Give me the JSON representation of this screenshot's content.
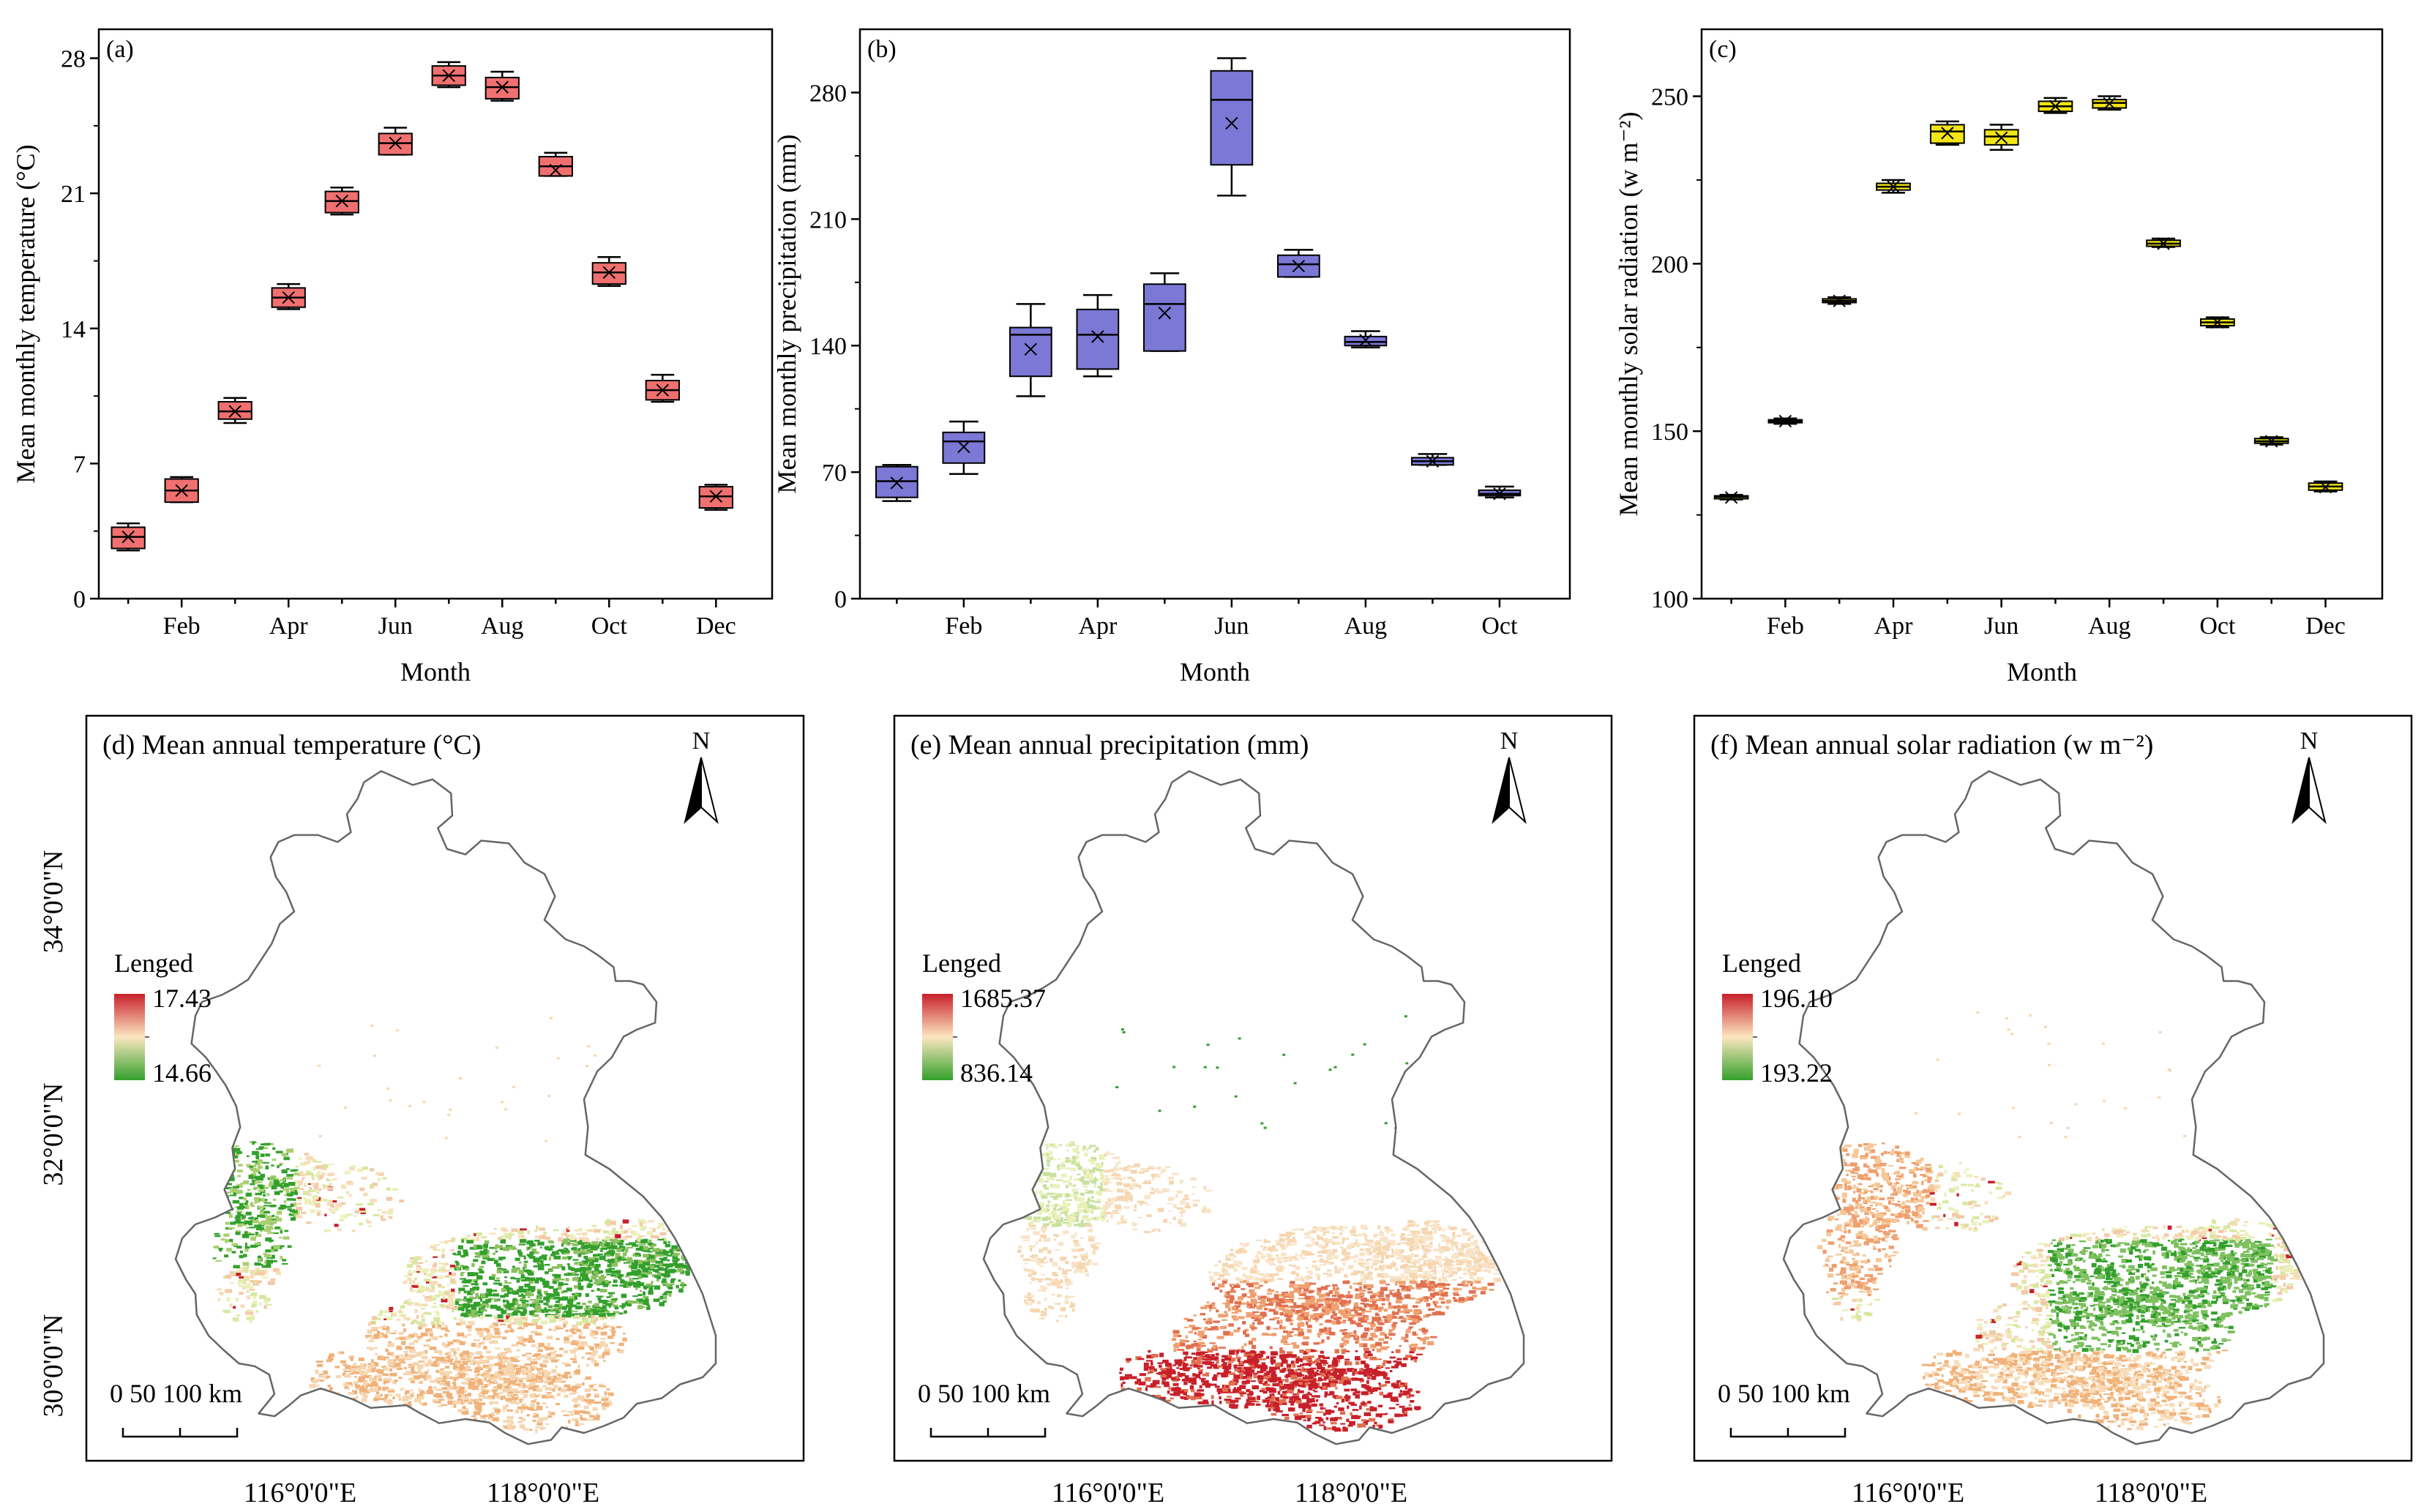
{
  "chart_data": [
    {
      "type": "box",
      "panel_label": "(a)",
      "ylabel": "Mean monthly temperature (°C)",
      "xlabel": "Month",
      "ylim": [
        0,
        29.5
      ],
      "yticks": [
        0,
        7,
        14,
        21,
        28
      ],
      "xtick_labels": {
        "2": "Feb",
        "4": "Apr",
        "6": "Jun",
        "8": "Aug",
        "10": "Oct",
        "12": "Dec"
      },
      "color": "#f07070",
      "months": [
        1,
        2,
        3,
        4,
        5,
        6,
        7,
        8,
        9,
        10,
        11,
        12
      ],
      "boxes": [
        {
          "min": 2.5,
          "q1": 2.6,
          "median": 3.2,
          "q3": 3.7,
          "max": 3.9,
          "mean": 3.2
        },
        {
          "min": 5.0,
          "q1": 5.0,
          "median": 5.6,
          "q3": 6.2,
          "max": 6.3,
          "mean": 5.6
        },
        {
          "min": 9.1,
          "q1": 9.3,
          "median": 9.7,
          "q3": 10.2,
          "max": 10.4,
          "mean": 9.7
        },
        {
          "min": 15.0,
          "q1": 15.1,
          "median": 15.6,
          "q3": 16.1,
          "max": 16.3,
          "mean": 15.6
        },
        {
          "min": 19.9,
          "q1": 20.0,
          "median": 20.6,
          "q3": 21.1,
          "max": 21.3,
          "mean": 20.6
        },
        {
          "min": 23.0,
          "q1": 23.0,
          "median": 23.6,
          "q3": 24.1,
          "max": 24.4,
          "mean": 23.6
        },
        {
          "min": 26.5,
          "q1": 26.6,
          "median": 27.1,
          "q3": 27.6,
          "max": 27.8,
          "mean": 27.1
        },
        {
          "min": 25.8,
          "q1": 25.9,
          "median": 26.5,
          "q3": 27.0,
          "max": 27.3,
          "mean": 26.5
        },
        {
          "min": 21.9,
          "q1": 21.9,
          "median": 22.4,
          "q3": 22.9,
          "max": 23.1,
          "mean": 22.2
        },
        {
          "min": 16.2,
          "q1": 16.3,
          "median": 16.9,
          "q3": 17.4,
          "max": 17.7,
          "mean": 16.9
        },
        {
          "min": 10.2,
          "q1": 10.3,
          "median": 10.8,
          "q3": 11.3,
          "max": 11.6,
          "mean": 10.8
        },
        {
          "min": 4.6,
          "q1": 4.7,
          "median": 5.3,
          "q3": 5.8,
          "max": 5.9,
          "mean": 5.3
        }
      ]
    },
    {
      "type": "box",
      "panel_label": "(b)",
      "ylabel": "Mean monthly precipitation (mm)",
      "xlabel": "Month",
      "ylim": [
        0,
        315
      ],
      "yticks": [
        0,
        70,
        140,
        210,
        280
      ],
      "xtick_labels": {
        "2": "Feb",
        "4": "Apr",
        "6": "Jun",
        "8": "Aug",
        "10": "Oct"
      },
      "color": "#7b78d6",
      "months": [
        1,
        2,
        3,
        4,
        5,
        6,
        7,
        8,
        9,
        10
      ],
      "boxes": [
        {
          "min": 54,
          "q1": 56,
          "median": 65,
          "q3": 73,
          "max": 74,
          "mean": 64
        },
        {
          "min": 69,
          "q1": 75,
          "median": 87,
          "q3": 92,
          "max": 98,
          "mean": 84
        },
        {
          "min": 112,
          "q1": 123,
          "median": 146,
          "q3": 150,
          "max": 163,
          "mean": 138
        },
        {
          "min": 123,
          "q1": 127,
          "median": 146,
          "q3": 160,
          "max": 168,
          "mean": 145
        },
        {
          "min": 137,
          "q1": 137,
          "median": 163,
          "q3": 174,
          "max": 180,
          "mean": 158
        },
        {
          "min": 223,
          "q1": 240,
          "median": 276,
          "q3": 292,
          "max": 299,
          "mean": 263
        },
        {
          "min": 178,
          "q1": 178,
          "median": 185,
          "q3": 190,
          "max": 193,
          "mean": 184
        },
        {
          "min": 139,
          "q1": 140,
          "median": 142,
          "q3": 145,
          "max": 148,
          "mean": 143
        },
        {
          "min": 74,
          "q1": 74,
          "median": 76,
          "q3": 78,
          "max": 80,
          "mean": 76
        },
        {
          "min": 56,
          "q1": 57,
          "median": 58,
          "q3": 60,
          "max": 62,
          "mean": 58
        }
      ]
    },
    {
      "type": "box",
      "panel_label": "(c)",
      "ylabel": "Mean monthly solar radiation (w m⁻²)",
      "xlabel": "Month",
      "ylim": [
        100,
        270
      ],
      "yticks": [
        100,
        150,
        200,
        250
      ],
      "xtick_labels": {
        "2": "Feb",
        "4": "Apr",
        "6": "Jun",
        "8": "Aug",
        "10": "Oct",
        "12": "Dec"
      },
      "color": "#f2e416",
      "months": [
        1,
        2,
        3,
        4,
        5,
        6,
        7,
        8,
        9,
        10,
        11,
        12
      ],
      "boxes": [
        {
          "min": 129.6,
          "q1": 130.0,
          "median": 130.4,
          "q3": 130.7,
          "max": 131.0,
          "mean": 130.2
        },
        {
          "min": 152.2,
          "q1": 152.6,
          "median": 153.0,
          "q3": 153.4,
          "max": 153.8,
          "mean": 153.0
        },
        {
          "min": 188.0,
          "q1": 188.4,
          "median": 188.9,
          "q3": 189.5,
          "max": 190.0,
          "mean": 188.9
        },
        {
          "min": 221.2,
          "q1": 222.0,
          "median": 223.0,
          "q3": 224.0,
          "max": 225.0,
          "mean": 223.0
        },
        {
          "min": 235.5,
          "q1": 236.0,
          "median": 239.5,
          "q3": 241.5,
          "max": 242.5,
          "mean": 239.0
        },
        {
          "min": 234.0,
          "q1": 235.5,
          "median": 238.0,
          "q3": 240.0,
          "max": 241.5,
          "mean": 237.6
        },
        {
          "min": 245.0,
          "q1": 245.5,
          "median": 247.0,
          "q3": 248.5,
          "max": 249.5,
          "mean": 247.0
        },
        {
          "min": 246.0,
          "q1": 246.5,
          "median": 248.0,
          "q3": 249.0,
          "max": 250.0,
          "mean": 247.8
        },
        {
          "min": 205.0,
          "q1": 205.2,
          "median": 206.0,
          "q3": 207.0,
          "max": 207.5,
          "mean": 206.0
        },
        {
          "min": 181.0,
          "q1": 181.5,
          "median": 182.5,
          "q3": 183.5,
          "max": 184.0,
          "mean": 182.5
        },
        {
          "min": 146.0,
          "q1": 146.4,
          "median": 147.0,
          "q3": 147.8,
          "max": 148.2,
          "mean": 147.0
        },
        {
          "min": 132.0,
          "q1": 132.4,
          "median": 133.5,
          "q3": 134.5,
          "max": 135.0,
          "mean": 133.3
        }
      ]
    }
  ],
  "maps": [
    {
      "title": "(d) Mean annual temperature (°C)",
      "legend_title": "Lenged",
      "legend_max": "17.43",
      "legend_min": "14.66",
      "scale_label": "0  50  100 km",
      "north": "N",
      "colors": [
        "#c8202a",
        "#fce7c0",
        "#33a02c"
      ]
    },
    {
      "title": "(e) Mean annual precipitation (mm)",
      "legend_title": "Lenged",
      "legend_max": "1685.37",
      "legend_min": "836.14",
      "scale_label": "0  50  100 km",
      "north": "N",
      "colors": [
        "#c8202a",
        "#fce7c0",
        "#33a02c"
      ]
    },
    {
      "title": "(f) Mean annual solar radiation (w m⁻²)",
      "legend_title": "Lenged",
      "legend_max": "196.10",
      "legend_min": "193.22",
      "scale_label": "0  50  100 km",
      "north": "N",
      "colors": [
        "#c8202a",
        "#fce7c0",
        "#33a02c"
      ]
    }
  ],
  "map_axes": {
    "lat_labels": [
      "34°0'0\"N",
      "32°0'0\"N",
      "30°0'0\"N"
    ],
    "lon_labels": [
      "116°0'0\"E",
      "118°0'0\"E"
    ]
  }
}
